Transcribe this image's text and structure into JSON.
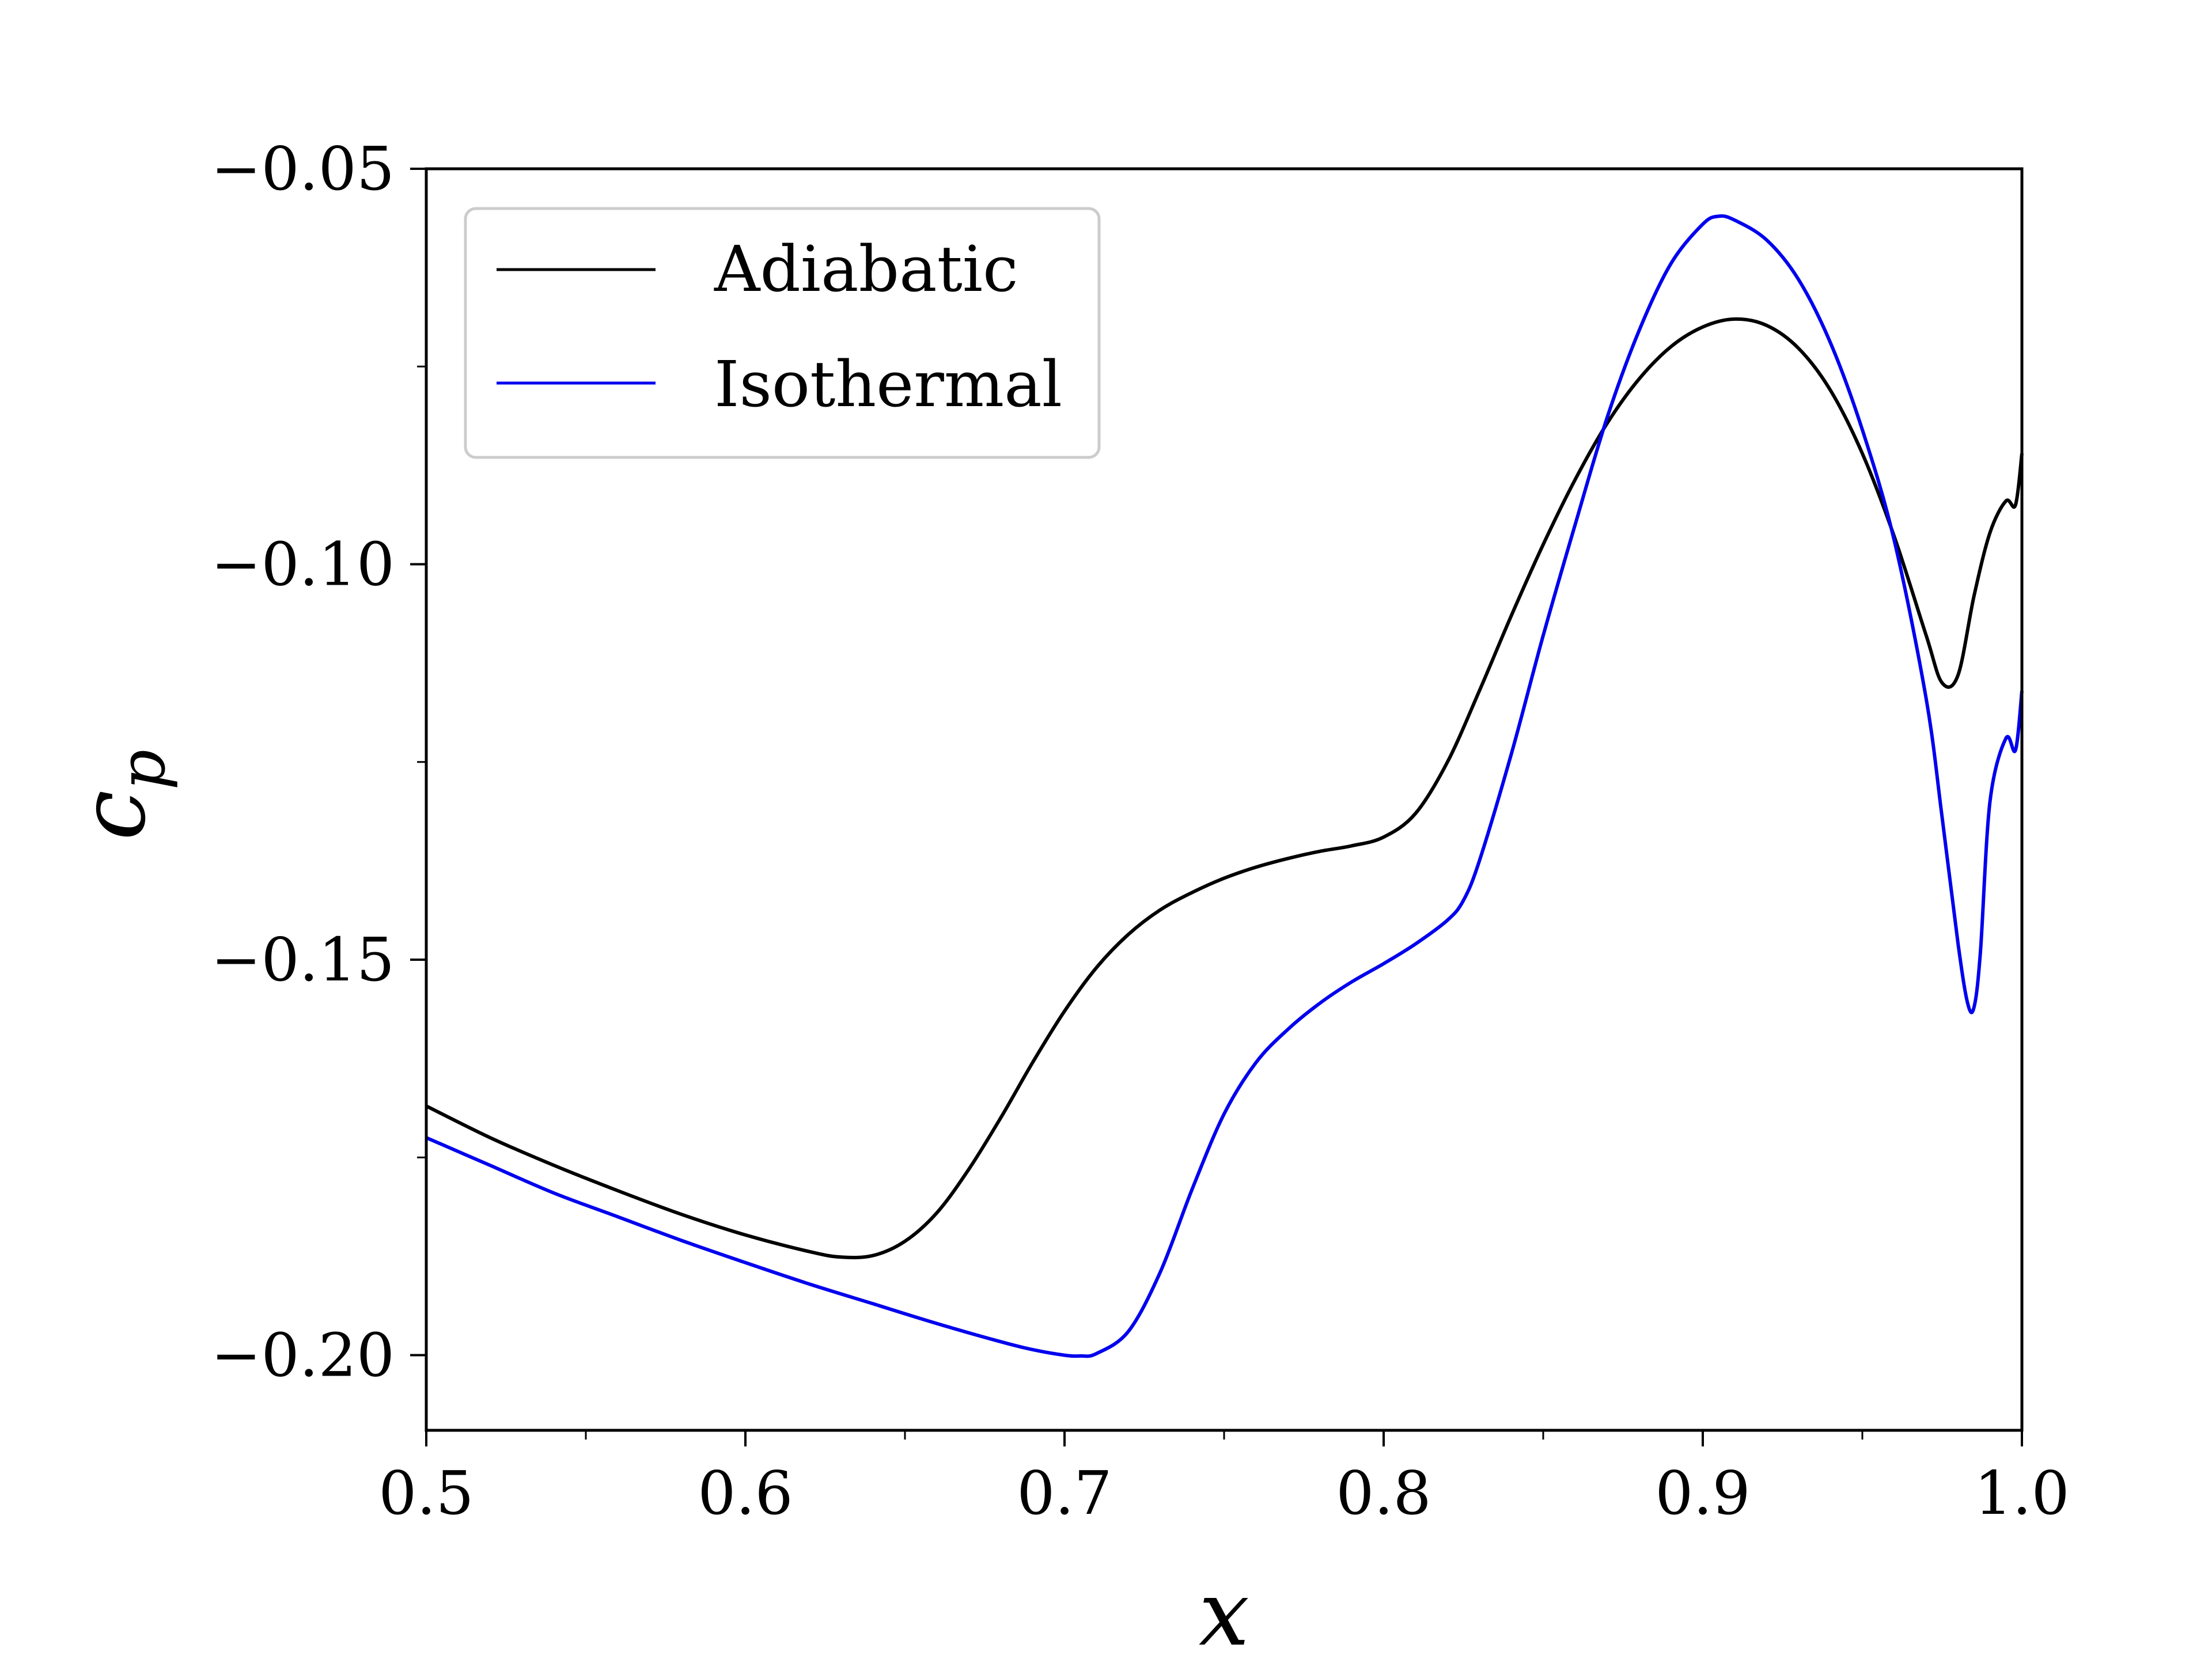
{
  "chart_data": {
    "type": "line",
    "title": "",
    "xlabel": "x",
    "ylabel": "c_p",
    "xlim": [
      0.5,
      1.0
    ],
    "ylim": [
      -0.2095,
      -0.05
    ],
    "xticks": [
      0.5,
      0.6,
      0.7,
      0.8,
      0.9,
      1.0
    ],
    "xtick_labels": [
      "0.5",
      "0.6",
      "0.7",
      "0.8",
      "0.9",
      "1.0"
    ],
    "yticks": [
      -0.05,
      -0.1,
      -0.15,
      -0.2
    ],
    "ytick_labels": [
      "−0.05",
      "−0.10",
      "−0.15",
      "−0.20"
    ],
    "grid": false,
    "legend_position": "top-left",
    "series": [
      {
        "name": "Adiabatic",
        "color": "#000000",
        "x": [
          0.5,
          0.52,
          0.54,
          0.56,
          0.58,
          0.6,
          0.62,
          0.63,
          0.64,
          0.65,
          0.66,
          0.67,
          0.68,
          0.69,
          0.7,
          0.71,
          0.72,
          0.73,
          0.74,
          0.75,
          0.76,
          0.77,
          0.78,
          0.79,
          0.8,
          0.81,
          0.82,
          0.83,
          0.84,
          0.85,
          0.86,
          0.87,
          0.88,
          0.89,
          0.9,
          0.91,
          0.92,
          0.93,
          0.94,
          0.95,
          0.96,
          0.97,
          0.975,
          0.98,
          0.985,
          0.99,
          0.995,
          0.998,
          1.0
        ],
        "y": [
          -0.1685,
          -0.1725,
          -0.176,
          -0.1792,
          -0.1822,
          -0.1848,
          -0.1869,
          -0.1876,
          -0.1874,
          -0.1856,
          -0.182,
          -0.1765,
          -0.17,
          -0.163,
          -0.1565,
          -0.151,
          -0.1468,
          -0.1437,
          -0.1415,
          -0.1397,
          -0.1383,
          -0.1372,
          -0.1363,
          -0.1356,
          -0.1345,
          -0.1315,
          -0.125,
          -0.116,
          -0.1065,
          -0.0975,
          -0.0893,
          -0.0822,
          -0.0766,
          -0.0725,
          -0.07,
          -0.069,
          -0.0698,
          -0.0727,
          -0.078,
          -0.086,
          -0.0965,
          -0.109,
          -0.115,
          -0.114,
          -0.104,
          -0.096,
          -0.092,
          -0.0925,
          -0.086
        ]
      },
      {
        "name": "Isothermal",
        "color": "#0000ee",
        "x": [
          0.5,
          0.52,
          0.54,
          0.56,
          0.58,
          0.6,
          0.62,
          0.64,
          0.66,
          0.68,
          0.69,
          0.7,
          0.705,
          0.71,
          0.72,
          0.73,
          0.74,
          0.75,
          0.76,
          0.77,
          0.78,
          0.79,
          0.8,
          0.81,
          0.82,
          0.825,
          0.83,
          0.84,
          0.85,
          0.86,
          0.87,
          0.88,
          0.89,
          0.9,
          0.905,
          0.91,
          0.92,
          0.93,
          0.94,
          0.95,
          0.96,
          0.97,
          0.975,
          0.98,
          0.983,
          0.985,
          0.987,
          0.99,
          0.995,
          0.998,
          1.0
        ],
        "y": [
          -0.1725,
          -0.176,
          -0.1795,
          -0.1825,
          -0.1855,
          -0.1883,
          -0.191,
          -0.1935,
          -0.196,
          -0.1983,
          -0.1993,
          -0.2,
          -0.2001,
          -0.1998,
          -0.197,
          -0.1895,
          -0.179,
          -0.1695,
          -0.163,
          -0.1588,
          -0.1555,
          -0.1528,
          -0.1505,
          -0.148,
          -0.145,
          -0.1425,
          -0.1375,
          -0.124,
          -0.109,
          -0.095,
          -0.0815,
          -0.0705,
          -0.062,
          -0.057,
          -0.056,
          -0.0565,
          -0.059,
          -0.064,
          -0.072,
          -0.083,
          -0.097,
          -0.117,
          -0.132,
          -0.148,
          -0.1555,
          -0.156,
          -0.149,
          -0.13,
          -0.122,
          -0.1235,
          -0.116
        ]
      }
    ]
  }
}
